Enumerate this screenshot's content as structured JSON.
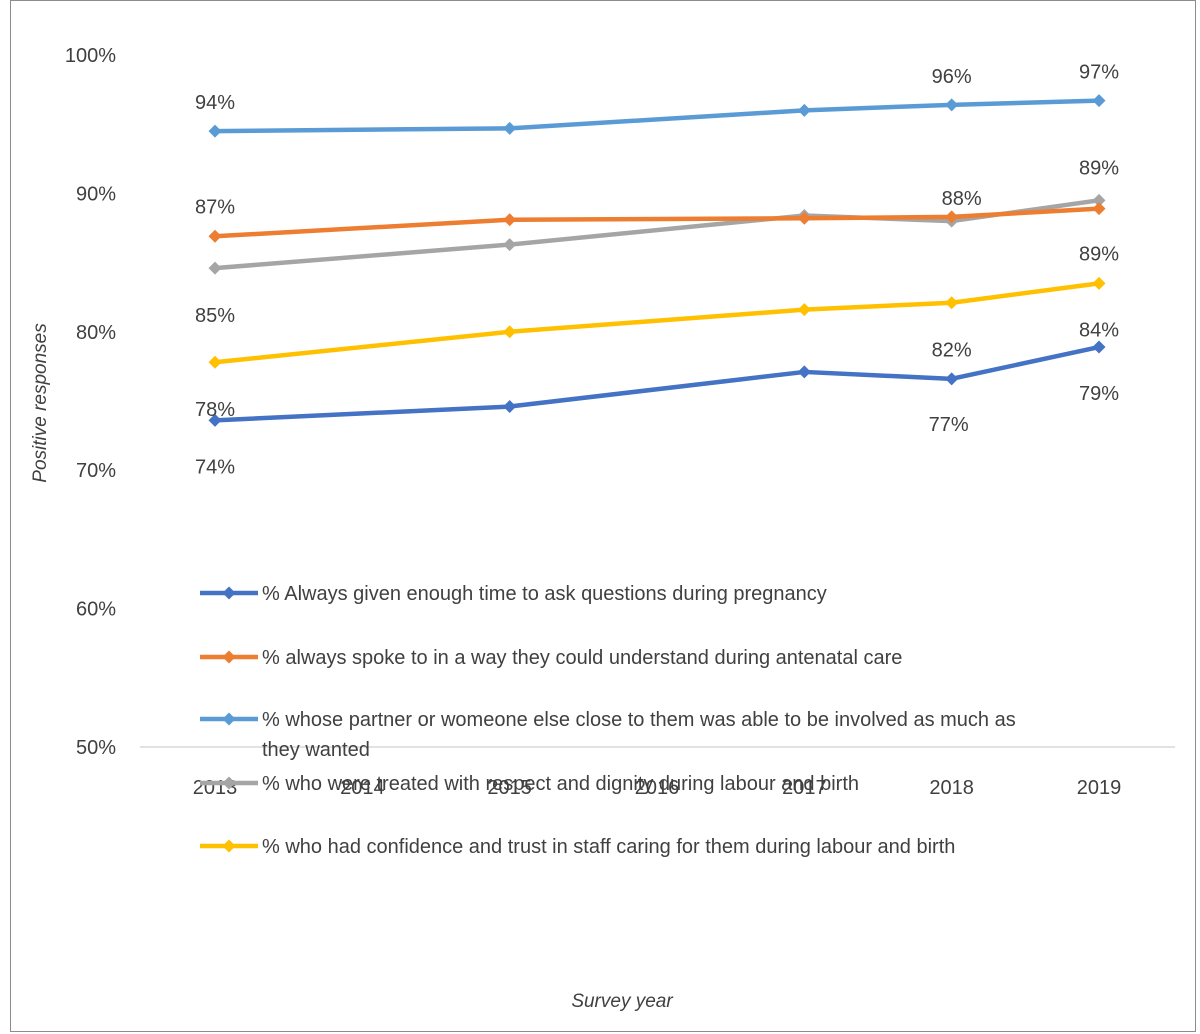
{
  "chart_data": {
    "type": "line",
    "title": "",
    "xlabel": "Survey year",
    "ylabel": "Positive responses",
    "x": [
      2013,
      2015,
      2017,
      2018,
      2019
    ],
    "x_tick_labels": [
      "2013",
      "2014",
      "2015",
      "2016",
      "2017",
      "2018",
      "2019"
    ],
    "y_tick_labels": [
      "50%",
      "60%",
      "70%",
      "80%",
      "90%",
      "100%"
    ],
    "ylim": [
      50,
      100
    ],
    "grid": false,
    "legend_position": "inside-left",
    "series": [
      {
        "name": "% Always given enough time to ask questions during pregnancy",
        "color": "#4472c4",
        "values": [
          73.6,
          74.6,
          77.1,
          76.6,
          78.9
        ],
        "labels": [
          "74%",
          "",
          "",
          "77%",
          "79%"
        ]
      },
      {
        "name": "% always spoke to in a way they could understand during antenatal care",
        "color": "#ed7d31",
        "values": [
          86.9,
          88.1,
          88.2,
          88.3,
          88.9
        ],
        "labels": [
          "87%",
          "",
          "",
          "",
          "89%"
        ]
      },
      {
        "name": "% whose partner or womeone else close to them was able to be involved as much as they wanted",
        "color": "#5b9bd5",
        "values": [
          94.5,
          94.7,
          96.0,
          96.4,
          96.7
        ],
        "labels": [
          "94%",
          "",
          "",
          "96%",
          "97%"
        ]
      },
      {
        "name": "% who were treated with respect and dignity during labour and birth",
        "color": "#a5a5a5",
        "values": [
          84.6,
          86.3,
          88.4,
          88.0,
          89.5
        ],
        "labels": [
          "85%",
          "",
          "",
          "88%",
          "89%"
        ]
      },
      {
        "name": "% who had confidence and trust in staff caring for them during labour and birth",
        "color": "#ffc000",
        "values": [
          77.8,
          80.0,
          81.6,
          82.1,
          83.5
        ],
        "labels": [
          "78%",
          "",
          "",
          "82%",
          "84%"
        ]
      }
    ]
  }
}
